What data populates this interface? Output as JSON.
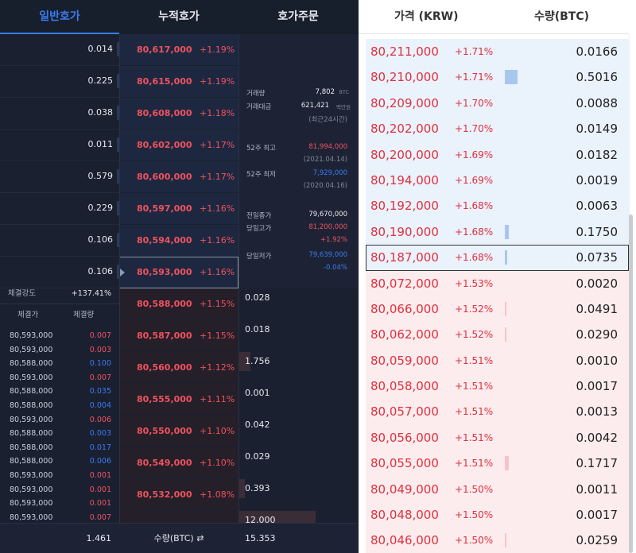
{
  "tabs": [
    {
      "label": "일반호가",
      "active": true
    },
    {
      "label": "누적호가",
      "active": false
    },
    {
      "label": "호가주문",
      "active": false
    }
  ],
  "ask_quantities": [
    "0.014",
    "0.225",
    "0.038",
    "0.011",
    "0.579",
    "0.229",
    "0.106",
    "0.106"
  ],
  "price_rows": [
    {
      "price": "80,617,000",
      "rate": "+1.19%",
      "side": "ask"
    },
    {
      "price": "80,615,000",
      "rate": "+1.19%",
      "side": "ask"
    },
    {
      "price": "80,608,000",
      "rate": "+1.18%",
      "side": "ask"
    },
    {
      "price": "80,602,000",
      "rate": "+1.17%",
      "side": "ask"
    },
    {
      "price": "80,600,000",
      "rate": "+1.17%",
      "side": "ask"
    },
    {
      "price": "80,597,000",
      "rate": "+1.16%",
      "side": "ask"
    },
    {
      "price": "80,594,000",
      "rate": "+1.16%",
      "side": "ask"
    },
    {
      "price": "80,593,000",
      "rate": "+1.16%",
      "side": "ask",
      "current": true
    },
    {
      "price": "80,588,000",
      "rate": "+1.15%",
      "side": "bid"
    },
    {
      "price": "80,587,000",
      "rate": "+1.15%",
      "side": "bid"
    },
    {
      "price": "80,560,000",
      "rate": "+1.12%",
      "side": "bid"
    },
    {
      "price": "80,555,000",
      "rate": "+1.11%",
      "side": "bid"
    },
    {
      "price": "80,550,000",
      "rate": "+1.10%",
      "side": "bid"
    },
    {
      "price": "80,549,000",
      "rate": "+1.10%",
      "side": "bid"
    },
    {
      "price": "80,532,000",
      "rate": "+1.08%",
      "side": "bid"
    },
    {
      "price": "80,531,000",
      "rate": "+1.08%",
      "side": "bid"
    }
  ],
  "info": {
    "volume_label": "거래량",
    "volume_value": "7,802",
    "volume_unit": "BTC",
    "amount_label": "거래대금",
    "amount_value": "621,421",
    "amount_unit": "백만원",
    "period_note": "(최근24시간)",
    "high52_label": "52주 최고",
    "high52_value": "81,994,000",
    "high52_date": "(2021.04.14)",
    "low52_label": "52주 최저",
    "low52_value": "7,929,000",
    "low52_date": "(2020.04.16)",
    "prev_close_label": "전일종가",
    "prev_close_value": "79,670,000",
    "day_high_label": "당일고가",
    "day_high_value": "81,200,000",
    "day_high_rate": "+1.92%",
    "day_low_label": "당일저가",
    "day_low_value": "79,639,000",
    "day_low_rate": "-0.04%"
  },
  "bid_quantities": [
    "0.028",
    "0.018",
    "1.756",
    "0.001",
    "0.042",
    "0.029",
    "0.393",
    "12.000"
  ],
  "bid_depth": [
    0,
    0,
    0.1,
    0,
    0,
    0,
    0.05,
    0.64
  ],
  "strength": {
    "label": "체결강도",
    "value": "+137.41%"
  },
  "trade_header": {
    "price": "체결가",
    "qty": "체결량"
  },
  "trades": [
    {
      "price": "80,593,000",
      "qty": "0.007",
      "side": "red"
    },
    {
      "price": "80,593,000",
      "qty": "0.003",
      "side": "red"
    },
    {
      "price": "80,588,000",
      "qty": "0.100",
      "side": "blue"
    },
    {
      "price": "80,593,000",
      "qty": "0.007",
      "side": "red"
    },
    {
      "price": "80,588,000",
      "qty": "0.035",
      "side": "blue"
    },
    {
      "price": "80,588,000",
      "qty": "0.004",
      "side": "blue"
    },
    {
      "price": "80,593,000",
      "qty": "0.006",
      "side": "red"
    },
    {
      "price": "80,588,000",
      "qty": "0.003",
      "side": "blue"
    },
    {
      "price": "80,588,000",
      "qty": "0.017",
      "side": "blue"
    },
    {
      "price": "80,588,000",
      "qty": "0.006",
      "side": "blue"
    },
    {
      "price": "80,593,000",
      "qty": "0.001",
      "side": "red"
    },
    {
      "price": "80,593,000",
      "qty": "0.001",
      "side": "red"
    },
    {
      "price": "80,593,000",
      "qty": "0.001",
      "side": "red"
    },
    {
      "price": "80,593,000",
      "qty": "0.007",
      "side": "red"
    }
  ],
  "footer": {
    "ask_total": "1.461",
    "qty_label": "수량(BTC) ⇄",
    "bid_total": "15.353"
  },
  "light_header": {
    "price": "가격 (KRW)",
    "qty": "수량(BTC)"
  },
  "light_rows": [
    {
      "price": "80,211,000",
      "rate": "+1.71%",
      "qty": "0.0166",
      "side": "ask",
      "depth": 0
    },
    {
      "price": "80,210,000",
      "rate": "+1.71%",
      "qty": "0.5016",
      "side": "ask",
      "depth": 0.32
    },
    {
      "price": "80,209,000",
      "rate": "+1.70%",
      "qty": "0.0088",
      "side": "ask",
      "depth": 0
    },
    {
      "price": "80,202,000",
      "rate": "+1.70%",
      "qty": "0.0149",
      "side": "ask",
      "depth": 0
    },
    {
      "price": "80,200,000",
      "rate": "+1.69%",
      "qty": "0.0182",
      "side": "ask",
      "depth": 0
    },
    {
      "price": "80,194,000",
      "rate": "+1.69%",
      "qty": "0.0019",
      "side": "ask",
      "depth": 0
    },
    {
      "price": "80,192,000",
      "rate": "+1.68%",
      "qty": "0.0063",
      "side": "ask",
      "depth": 0
    },
    {
      "price": "80,190,000",
      "rate": "+1.68%",
      "qty": "0.1750",
      "side": "ask",
      "depth": 0.1
    },
    {
      "price": "80,187,000",
      "rate": "+1.68%",
      "qty": "0.0735",
      "side": "ask",
      "depth": 0.05,
      "current": true
    },
    {
      "price": "80,072,000",
      "rate": "+1.53%",
      "qty": "0.0020",
      "side": "bid",
      "depth": 0
    },
    {
      "price": "80,066,000",
      "rate": "+1.52%",
      "qty": "0.0491",
      "side": "bid",
      "depth": 0.04
    },
    {
      "price": "80,062,000",
      "rate": "+1.52%",
      "qty": "0.0290",
      "side": "bid",
      "depth": 0.03
    },
    {
      "price": "80,059,000",
      "rate": "+1.51%",
      "qty": "0.0010",
      "side": "bid",
      "depth": 0
    },
    {
      "price": "80,058,000",
      "rate": "+1.51%",
      "qty": "0.0017",
      "side": "bid",
      "depth": 0
    },
    {
      "price": "80,057,000",
      "rate": "+1.51%",
      "qty": "0.0013",
      "side": "bid",
      "depth": 0
    },
    {
      "price": "80,056,000",
      "rate": "+1.51%",
      "qty": "0.0042",
      "side": "bid",
      "depth": 0
    },
    {
      "price": "80,055,000",
      "rate": "+1.51%",
      "qty": "0.1717",
      "side": "bid",
      "depth": 0.1
    },
    {
      "price": "80,049,000",
      "rate": "+1.50%",
      "qty": "0.0011",
      "side": "bid",
      "depth": 0
    },
    {
      "price": "80,048,000",
      "rate": "+1.50%",
      "qty": "0.0017",
      "side": "bid",
      "depth": 0
    },
    {
      "price": "80,046,000",
      "rate": "+1.50%",
      "qty": "0.0259",
      "side": "bid",
      "depth": 0.02
    }
  ]
}
